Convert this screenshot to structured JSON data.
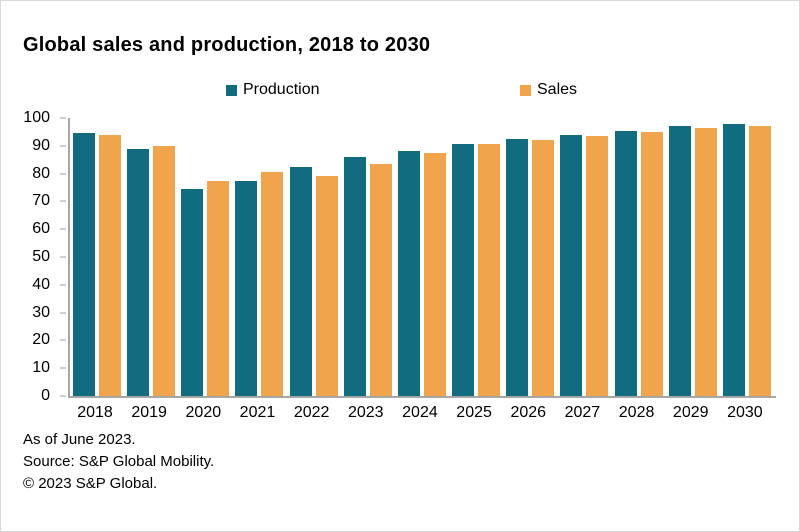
{
  "title": "Global sales and production, 2018 to 2030",
  "legend": {
    "production_label": "Production",
    "sales_label": "Sales"
  },
  "footer": {
    "line1": "As of June 2023.",
    "line2": "Source: S&P Global Mobility.",
    "line3": "© 2023 S&P Global."
  },
  "colors": {
    "production": "#116C80",
    "sales": "#F0A54C",
    "axis": "#A6A6A6",
    "text": "#000000"
  },
  "chart_data": {
    "type": "bar",
    "title": "Global sales and production, 2018 to 2030",
    "categories": [
      "2018",
      "2019",
      "2020",
      "2021",
      "2022",
      "2023",
      "2024",
      "2025",
      "2026",
      "2027",
      "2028",
      "2029",
      "2030"
    ],
    "series": [
      {
        "name": "Production",
        "color": "#116C80",
        "values": [
          94.5,
          89,
          74.5,
          77.5,
          82.5,
          86,
          88,
          90.5,
          92.5,
          94,
          95.5,
          97,
          98
        ]
      },
      {
        "name": "Sales",
        "color": "#F0A54C",
        "values": [
          94,
          90,
          77.5,
          80.5,
          79,
          83.5,
          87.5,
          90.5,
          92,
          93.5,
          95,
          96.5,
          97
        ]
      }
    ],
    "xlabel": "",
    "ylabel": "",
    "ylim": [
      0,
      100
    ],
    "yticks": [
      0,
      10,
      20,
      30,
      40,
      50,
      60,
      70,
      80,
      90,
      100
    ],
    "grid": false,
    "legend_position": "top"
  }
}
